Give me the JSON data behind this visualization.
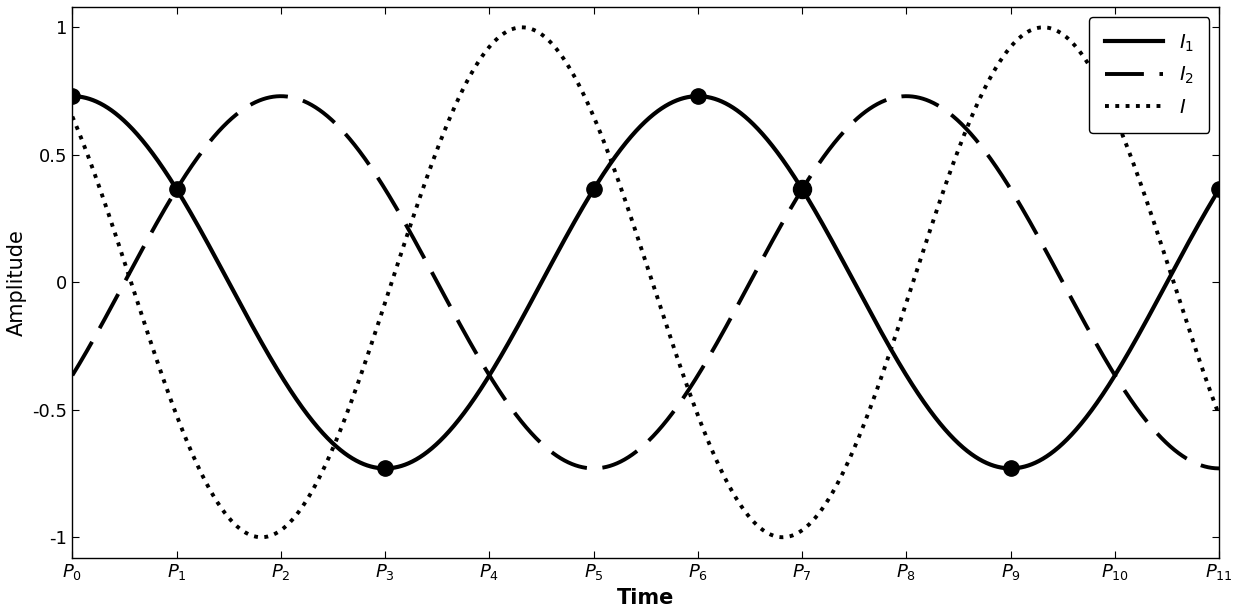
{
  "title": "",
  "xlabel": "Time",
  "ylabel": "Amplitude",
  "xlim": [
    0,
    11
  ],
  "ylim": [
    -1.08,
    1.08
  ],
  "yticks": [
    -1,
    -0.5,
    0,
    0.5,
    1
  ],
  "xtick_labels": [
    "$P_0$",
    "$P_1$",
    "$P_2$",
    "$P_3$",
    "$P_4$",
    "$P_5$",
    "$P_6$",
    "$P_7$",
    "$P_8$",
    "$P_9$",
    "$P_{10}$",
    "$P_{11}$"
  ],
  "background_color": "#ffffff",
  "line_color": "#000000",
  "I1_amplitude": 0.73,
  "I1_period": 11.0,
  "I1_phase": 0.0,
  "I2_amplitude": 0.73,
  "I2_period": 11.0,
  "I2_phase_shift": 2.0,
  "I_amplitude": 1.0,
  "I_period": 5.5,
  "I_phase_at_0": 0.65,
  "dot_positions_I1": [
    0,
    1,
    3,
    5,
    6,
    9,
    11
  ],
  "dot_positions_I2": [
    7
  ],
  "dot_size": 130,
  "legend_labels": [
    "$I_1$",
    "$I_2$",
    "$I$"
  ],
  "legend_loc": "upper right",
  "linewidth_solid": 3.0,
  "linewidth_dashed": 2.8,
  "linewidth_dotted": 2.8,
  "fontsize_axis_label": 15,
  "fontsize_tick": 13,
  "fontsize_legend": 14
}
